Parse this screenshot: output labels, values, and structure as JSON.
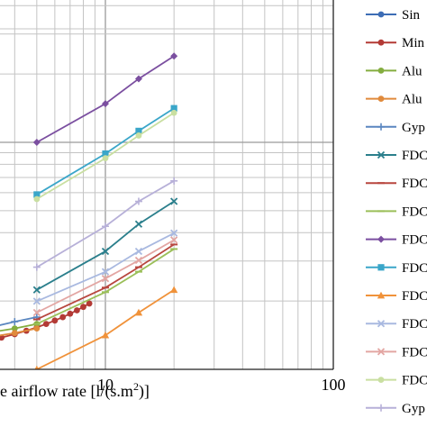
{
  "chart_data": {
    "type": "line",
    "x_scale": "log",
    "y_scale": "log",
    "grid": true,
    "legend_position": "right",
    "xlabel": "e airflow rate [l/(s.m2)]",
    "x_ticks": [
      "10",
      "100"
    ],
    "x_visible_range": [
      4.0,
      120
    ],
    "y_visible_range_decades": [
      0,
      1.5
    ],
    "series": [
      {
        "name": "Sin",
        "color": "#3d6db5",
        "marker": "circle",
        "x": [
          1,
          1.5,
          2,
          2.5,
          3,
          3.5,
          4,
          4.5,
          5,
          5.5,
          6,
          6.5,
          7,
          7.5,
          8,
          8.5
        ],
        "y": [
          1.65,
          1.65,
          1.66,
          1.67,
          1.69,
          1.71,
          1.74,
          1.76,
          1.79,
          1.81,
          1.84,
          1.86,
          1.88,
          1.9,
          1.92,
          1.93
        ]
      },
      {
        "name": "Min",
        "color": "#b33a35",
        "marker": "circle",
        "x": [
          2,
          2.5,
          3,
          3.5,
          4,
          4.5,
          5,
          5.5,
          6,
          6.5,
          7,
          7.5,
          8,
          8.5
        ],
        "y": [
          0.1,
          0.11,
          0.125,
          0.14,
          0.155,
          0.17,
          0.185,
          0.2,
          0.215,
          0.23,
          0.245,
          0.26,
          0.275,
          0.29
        ]
      },
      {
        "name": "Alu",
        "color": "#84ad3f",
        "marker": "circle",
        "x": [
          2,
          3,
          4,
          5
        ],
        "y": [
          0.13,
          0.16,
          0.18,
          0.2
        ]
      },
      {
        "name": "Alu",
        "color": "#e08a3c",
        "marker": "circle",
        "x": [
          2,
          3,
          4,
          5
        ],
        "y": [
          0.11,
          0.14,
          0.16,
          0.18
        ]
      },
      {
        "name": "Gyp",
        "color": "#5a86c0",
        "marker": "plus",
        "x": [
          3,
          4,
          5
        ],
        "y": [
          0.18,
          0.21,
          0.23
        ]
      },
      {
        "name": "FDC",
        "color": "#2b7f8c",
        "marker": "x",
        "x": [
          5,
          10,
          14,
          20
        ],
        "y": [
          0.35,
          0.52,
          0.64,
          0.74
        ]
      },
      {
        "name": "FDC",
        "color": "#b8473f",
        "marker": "dash",
        "x": [
          5,
          10,
          14,
          20
        ],
        "y": [
          0.22,
          0.36,
          0.45,
          0.55
        ]
      },
      {
        "name": "FDC",
        "color": "#9bbf59",
        "marker": "dash",
        "x": [
          5,
          10,
          14,
          20
        ],
        "y": [
          0.2,
          0.34,
          0.43,
          0.53
        ]
      },
      {
        "name": "FDC",
        "color": "#7b4fa0",
        "marker": "diamond",
        "x": [
          5,
          10,
          14,
          20
        ],
        "y": [
          1.0,
          1.17,
          1.28,
          1.38
        ]
      },
      {
        "name": "FDC",
        "color": "#3aa6c9",
        "marker": "square",
        "x": [
          5,
          10,
          14,
          20
        ],
        "y": [
          0.77,
          0.95,
          1.05,
          1.15
        ]
      },
      {
        "name": "FDC",
        "color": "#f0923a",
        "marker": "triangle",
        "x": [
          5,
          10,
          14,
          20
        ],
        "y": [
          0.0,
          0.15,
          0.25,
          0.35
        ]
      },
      {
        "name": "FDC",
        "color": "#a9b9e0",
        "marker": "x",
        "x": [
          5,
          10,
          14,
          20
        ],
        "y": [
          0.3,
          0.43,
          0.52,
          0.6
        ]
      },
      {
        "name": "FDC",
        "color": "#e3a6a3",
        "marker": "x",
        "x": [
          5,
          10,
          14,
          20
        ],
        "y": [
          0.25,
          0.4,
          0.48,
          0.57
        ]
      },
      {
        "name": "FDC",
        "color": "#c9dfa1",
        "marker": "circle",
        "x": [
          5,
          10,
          14,
          20
        ],
        "y": [
          0.75,
          0.93,
          1.03,
          1.13
        ]
      },
      {
        "name": "Gyp",
        "color": "#b7b0d8",
        "marker": "plus",
        "x": [
          5,
          10,
          14,
          20
        ],
        "y": [
          0.45,
          0.63,
          0.74,
          0.83
        ]
      }
    ]
  }
}
